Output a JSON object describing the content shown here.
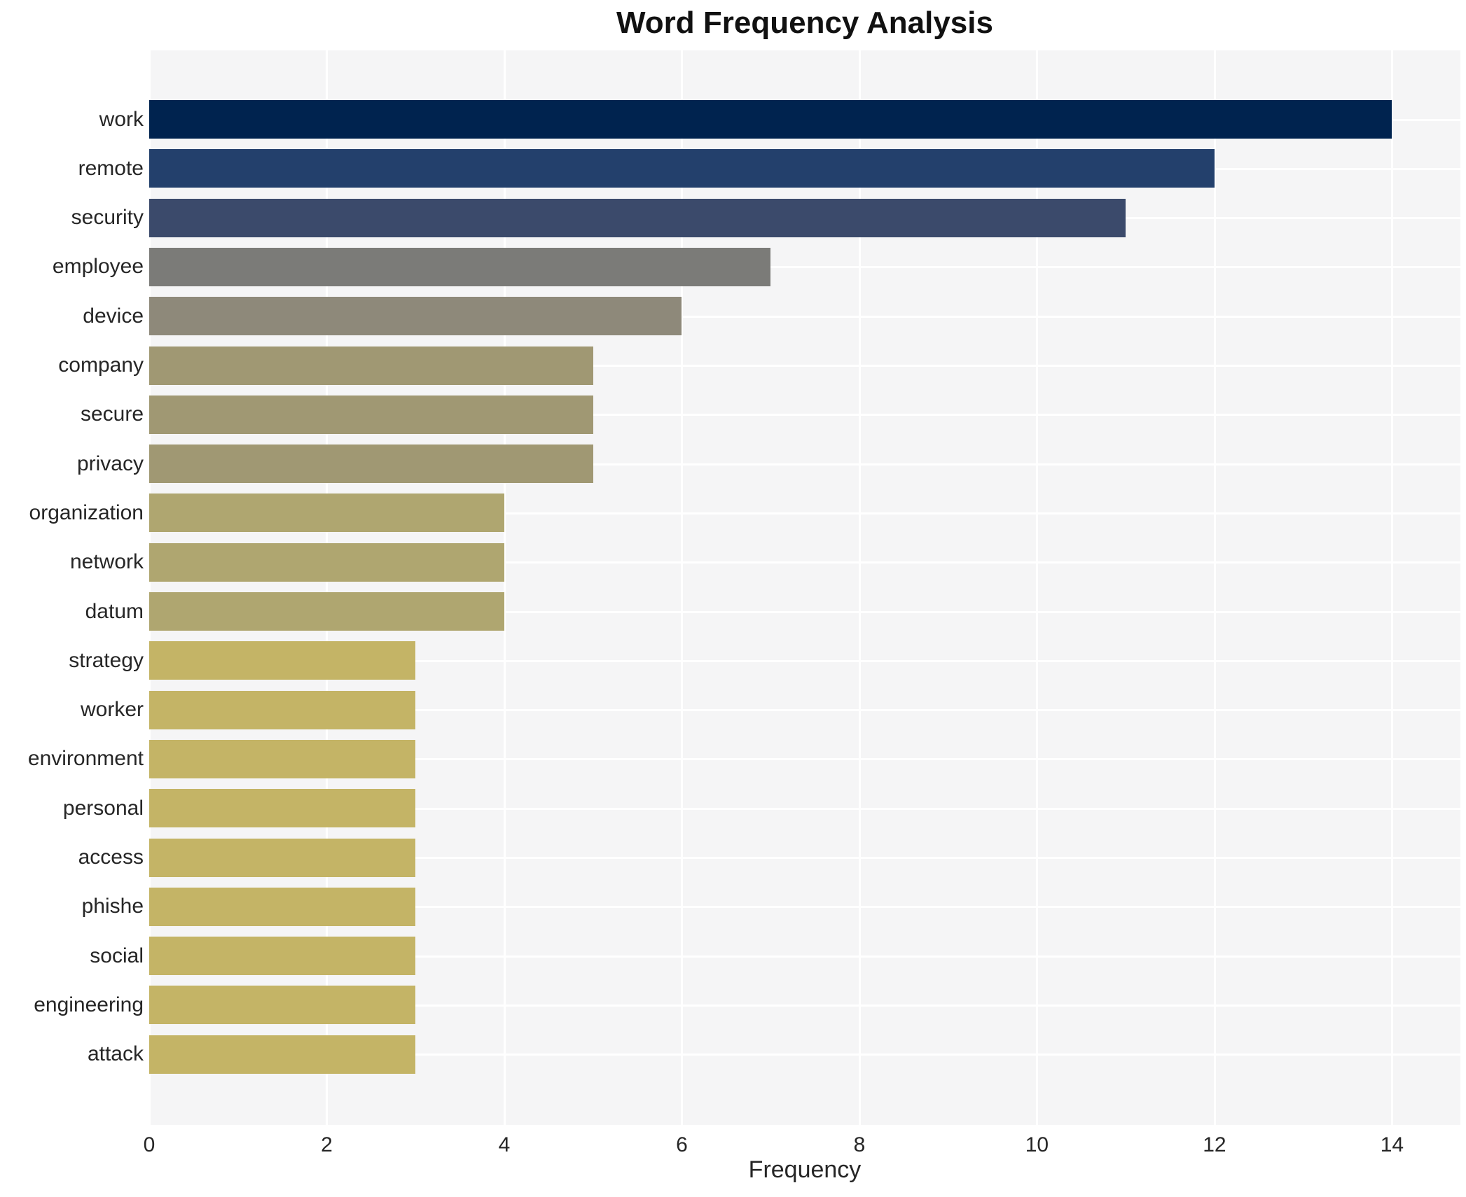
{
  "chart_data": {
    "type": "bar",
    "orientation": "horizontal",
    "title": "Word Frequency Analysis",
    "xlabel": "Frequency",
    "ylabel": "",
    "categories": [
      "work",
      "remote",
      "security",
      "employee",
      "device",
      "company",
      "secure",
      "privacy",
      "organization",
      "network",
      "datum",
      "strategy",
      "worker",
      "environment",
      "personal",
      "access",
      "phishe",
      "social",
      "engineering",
      "attack"
    ],
    "values": [
      14,
      12,
      11,
      7,
      6,
      5,
      5,
      5,
      4,
      4,
      4,
      3,
      3,
      3,
      3,
      3,
      3,
      3,
      3,
      3
    ],
    "bar_colors": [
      "#00234F",
      "#23406C",
      "#3B4A6B",
      "#7B7B78",
      "#8E897A",
      "#A09873",
      "#A09873",
      "#A09873",
      "#AFA670",
      "#AFA670",
      "#AFA670",
      "#C4B466",
      "#C4B466",
      "#C4B466",
      "#C4B466",
      "#C4B466",
      "#C4B466",
      "#C4B466",
      "#C4B466",
      "#C4B466"
    ],
    "xticks": [
      0,
      2,
      4,
      6,
      8,
      10,
      12,
      14
    ],
    "xlim": [
      0,
      14.77
    ],
    "grid": true,
    "legend": false,
    "plot_background": "#f5f5f6",
    "grid_color": "#ffffff",
    "text_color": "#262626"
  }
}
